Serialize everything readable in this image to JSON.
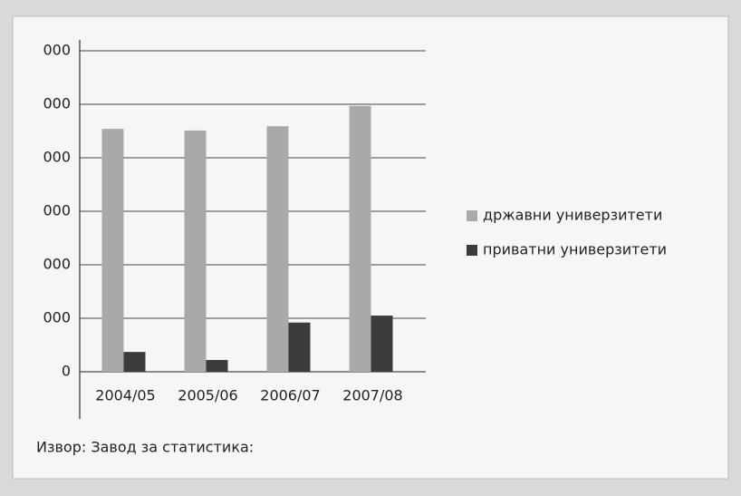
{
  "chart_data": {
    "type": "bar",
    "categories": [
      "2004/05",
      "2005/06",
      "2006/07",
      "2007/08"
    ],
    "series": [
      {
        "name": "државни универзитети",
        "color": "#a9a9a9",
        "values": [
          45400,
          45100,
          45900,
          49700
        ]
      },
      {
        "name": "приватни универзитети",
        "color": "#3b3b3b",
        "values": [
          3700,
          2200,
          9200,
          10500
        ]
      }
    ],
    "ylim": [
      0,
      61000
    ],
    "yticks": [
      0,
      {
        "value": 10000,
        "label": "000"
      },
      {
        "value": 20000,
        "label": "000"
      },
      {
        "value": 30000,
        "label": "000"
      },
      {
        "value": 40000,
        "label": "000"
      },
      {
        "value": 50000,
        "label": "000"
      },
      {
        "value": 60000,
        "label": "000"
      }
    ],
    "grid": true,
    "legend": "right",
    "source": "Извор: Завод за статистика:"
  }
}
